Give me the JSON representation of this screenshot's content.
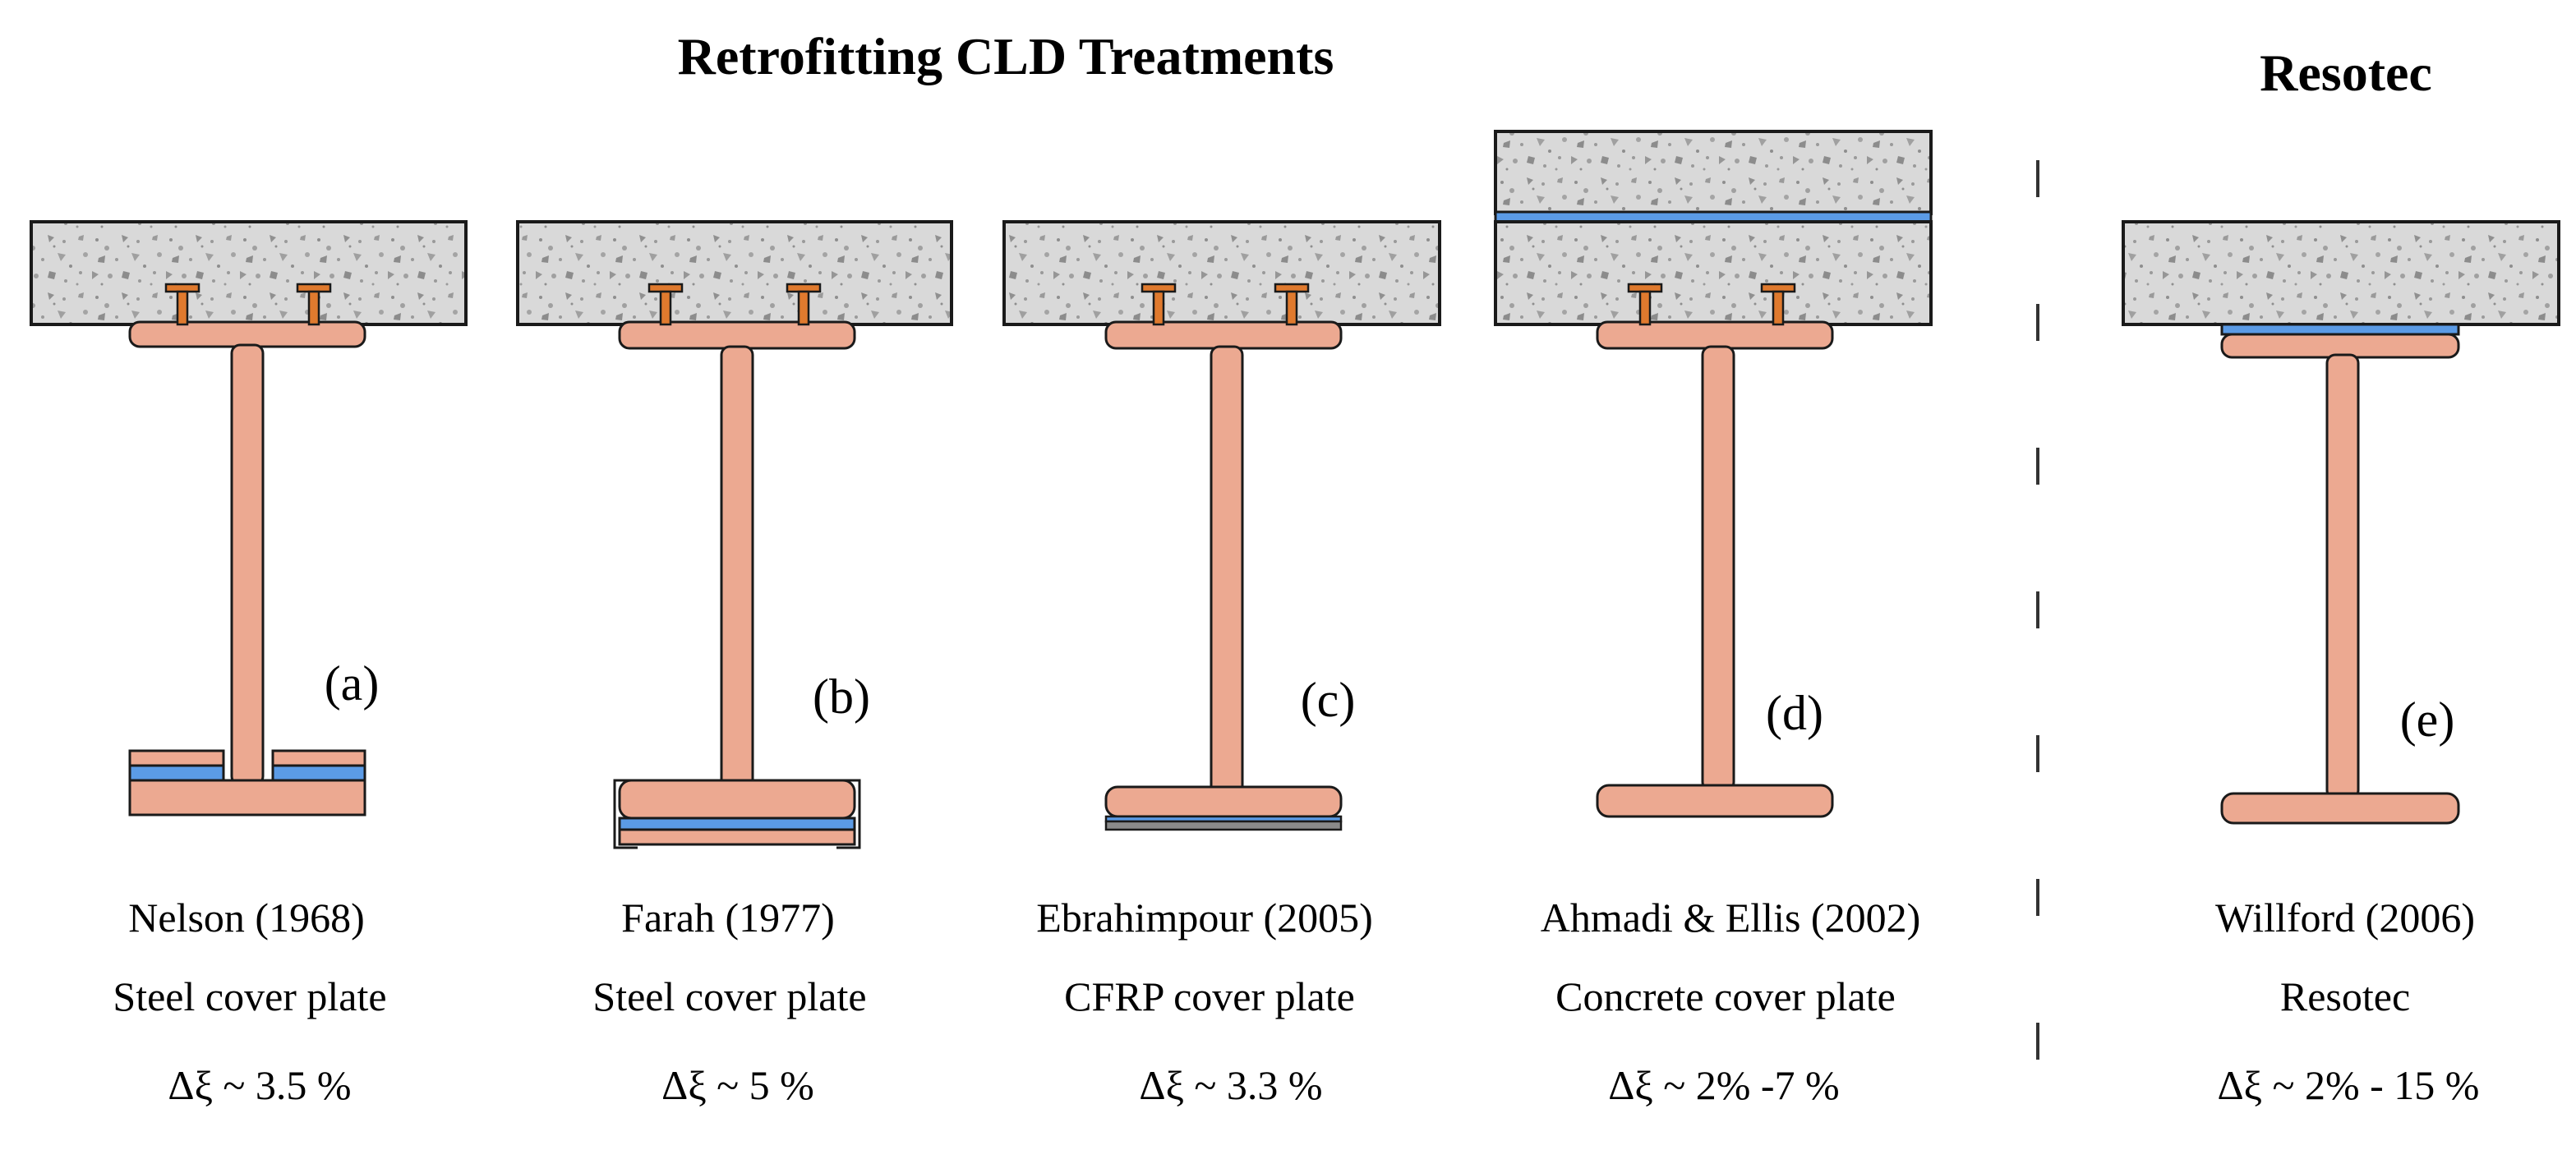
{
  "figure": {
    "title_left": "Retrofitting CLD Treatments",
    "title_right": "Resotec",
    "colors": {
      "steel": "#ECA991",
      "concrete": "#D9D9D9",
      "aggregate": "#9A9A9A",
      "damping_layer": "#5B9BE6",
      "stud": "#E07A2E",
      "outline": "#1A1A1A"
    },
    "panels": [
      {
        "tag": "(a)",
        "author": "Nelson (1968)",
        "treatment": "Steel cover plate",
        "damping": "Δξ ~ 3.5 %"
      },
      {
        "tag": "(b)",
        "author": "Farah (1977)",
        "treatment": "Steel cover plate",
        "damping": "Δξ ~ 5 %"
      },
      {
        "tag": "(c)",
        "author": "Ebrahimpour  (2005)",
        "treatment": "CFRP cover plate",
        "damping": "Δξ ~ 3.3 %"
      },
      {
        "tag": "(d)",
        "author": "Ahmadi & Ellis (2002)",
        "treatment": "Concrete cover plate",
        "damping": "Δξ ~ 2% -7 %"
      },
      {
        "tag": "(e)",
        "author": "Willford (2006)",
        "treatment": "Resotec",
        "damping": "Δξ ~ 2% - 15 %"
      }
    ]
  }
}
